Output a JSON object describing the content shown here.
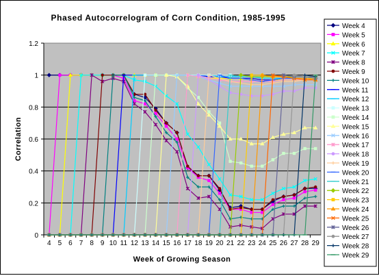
{
  "chart_data": {
    "type": "line",
    "title": "Phased Autocorrelogram of Corn Condition, 1985-1995",
    "xlabel": "Week of Growing Season",
    "ylabel": "Correlation",
    "x": [
      4,
      5,
      6,
      7,
      8,
      9,
      10,
      11,
      12,
      13,
      14,
      15,
      16,
      17,
      18,
      19,
      20,
      21,
      22,
      23,
      24,
      25,
      26,
      27,
      28,
      29
    ],
    "xlim": [
      4,
      29
    ],
    "ylim": [
      0,
      1.2
    ],
    "yticks": [
      "0",
      "0.2",
      "0.4",
      "0.6",
      "0.8",
      "1",
      "1.2"
    ],
    "grid": "horizontal",
    "legend_position": "right",
    "series": [
      {
        "name": "Week 4",
        "color": "#000080",
        "marker": "diamond",
        "values": [
          1,
          1,
          1,
          1,
          1,
          1,
          1,
          1,
          0.88,
          0.86,
          0.79,
          0.7,
          0.64,
          0.42,
          0.37,
          0.37,
          0.28,
          0.17,
          0.18,
          0.16,
          0.16,
          0.21,
          0.24,
          0.25,
          0.29,
          0.29
        ]
      },
      {
        "name": "Week 5",
        "color": "#FF00FF",
        "marker": "square",
        "values": [
          0,
          1,
          1,
          1,
          1,
          1,
          1,
          0.98,
          0.84,
          0.82,
          0.76,
          0.68,
          0.6,
          0.42,
          0.36,
          0.34,
          0.26,
          0.16,
          0.16,
          0.14,
          0.14,
          0.19,
          0.22,
          0.23,
          0.27,
          0.28
        ]
      },
      {
        "name": "Week 6",
        "color": "#FFFF00",
        "marker": "triangle",
        "values": [
          0,
          0,
          1,
          1,
          1,
          1,
          1,
          1,
          1,
          1,
          1,
          1,
          1,
          1,
          0.99,
          0.98,
          0.98,
          0.98,
          0.98,
          0.98,
          0.97,
          0.97,
          0.97,
          0.97,
          0.97,
          0.97
        ]
      },
      {
        "name": "Week 7",
        "color": "#00FFFF",
        "marker": "x",
        "values": [
          0,
          0,
          0,
          1,
          1,
          1,
          1,
          1,
          0.97,
          0.96,
          0.93,
          0.87,
          0.82,
          0.63,
          0.55,
          0.44,
          0.35,
          0.25,
          0.24,
          0.22,
          0.22,
          0.26,
          0.29,
          0.3,
          0.34,
          0.35
        ]
      },
      {
        "name": "Week 8",
        "color": "#800080",
        "marker": "star",
        "values": [
          0,
          0,
          0,
          0,
          1,
          0.96,
          0.98,
          0.96,
          0.82,
          0.77,
          0.69,
          0.59,
          0.52,
          0.29,
          0.23,
          0.24,
          0.16,
          0.05,
          0.06,
          0.05,
          0.04,
          0.1,
          0.13,
          0.13,
          0.18,
          0.18
        ]
      },
      {
        "name": "Week 9",
        "color": "#800000",
        "marker": "circle",
        "values": [
          0,
          0,
          0,
          0,
          0,
          1,
          1,
          1,
          0.88,
          0.88,
          0.78,
          0.7,
          0.64,
          0.43,
          0.37,
          0.37,
          0.29,
          0.16,
          0.17,
          0.16,
          0.16,
          0.22,
          0.24,
          0.25,
          0.29,
          0.3
        ]
      },
      {
        "name": "Week 10",
        "color": "#008080",
        "marker": "plus",
        "values": [
          0,
          0,
          0,
          0,
          0,
          0,
          1,
          1,
          0.86,
          0.84,
          0.74,
          0.64,
          0.58,
          0.36,
          0.3,
          0.3,
          0.22,
          0.1,
          0.11,
          0.1,
          0.1,
          0.16,
          0.18,
          0.18,
          0.23,
          0.24
        ]
      },
      {
        "name": "Week 11",
        "color": "#0000FF",
        "marker": "dash",
        "values": [
          0,
          0,
          0,
          0,
          0,
          0,
          0,
          1,
          1,
          1,
          1,
          1,
          1,
          1,
          1,
          0.99,
          0.99,
          0.98,
          0.98,
          0.98,
          0.97,
          0.97,
          0.98,
          0.98,
          0.98,
          0.98
        ]
      },
      {
        "name": "Week 12",
        "color": "#00CCFF",
        "marker": "dash",
        "values": [
          0,
          0,
          0,
          0,
          0,
          0,
          0,
          0,
          1,
          1,
          1,
          1,
          1,
          1,
          1,
          1,
          0.99,
          0.99,
          0.99,
          0.99,
          0.98,
          0.98,
          0.98,
          0.98,
          0.98,
          0.98
        ]
      },
      {
        "name": "Week 13",
        "color": "#CCFFFF",
        "marker": "square",
        "values": [
          0,
          0,
          0,
          0,
          0,
          0,
          0,
          0,
          0,
          1,
          1,
          1,
          1,
          1,
          1,
          1,
          1,
          1,
          0.99,
          0.99,
          0.99,
          0.99,
          0.99,
          0.99,
          0.99,
          0.99
        ]
      },
      {
        "name": "Week 14",
        "color": "#CCFFCC",
        "marker": "square",
        "values": [
          0,
          0,
          0,
          0,
          0,
          0,
          0,
          0,
          0,
          0,
          1,
          1,
          0.99,
          0.92,
          0.86,
          0.77,
          0.7,
          0.46,
          0.45,
          0.43,
          0.43,
          0.47,
          0.51,
          0.51,
          0.54,
          0.54
        ]
      },
      {
        "name": "Week 15",
        "color": "#FFFF99",
        "marker": "triangle",
        "values": [
          0,
          0,
          0,
          0,
          0,
          0,
          0,
          0,
          0,
          0,
          0,
          1,
          0.99,
          0.93,
          0.82,
          0.75,
          0.68,
          0.6,
          0.6,
          0.57,
          0.57,
          0.61,
          0.63,
          0.64,
          0.67,
          0.67
        ]
      },
      {
        "name": "Week 16",
        "color": "#99CCFF",
        "marker": "x",
        "values": [
          0,
          0,
          0,
          0,
          0,
          0,
          0,
          0,
          0,
          0,
          0,
          0,
          1,
          1,
          0.99,
          0.97,
          0.95,
          0.93,
          0.93,
          0.93,
          0.93,
          0.93,
          0.93,
          0.94,
          0.94,
          0.94
        ]
      },
      {
        "name": "Week 17",
        "color": "#FF99CC",
        "marker": "star",
        "values": [
          0,
          0,
          0,
          0,
          0,
          0,
          0,
          0,
          0,
          0,
          0,
          0,
          0,
          1,
          0.99,
          0.98,
          0.97,
          0.96,
          0.96,
          0.96,
          0.96,
          0.96,
          0.97,
          0.97,
          0.97,
          0.97
        ]
      },
      {
        "name": "Week 18",
        "color": "#CC99FF",
        "marker": "circle",
        "values": [
          0,
          0,
          0,
          0,
          0,
          0,
          0,
          0,
          0,
          0,
          0,
          0,
          0,
          0,
          1,
          0.97,
          0.93,
          0.89,
          0.88,
          0.87,
          0.87,
          0.88,
          0.9,
          0.9,
          0.92,
          0.92
        ]
      },
      {
        "name": "Week 19",
        "color": "#FFCC99",
        "marker": "plus",
        "values": [
          0,
          0,
          0,
          0,
          0,
          0,
          0,
          0,
          0,
          0,
          0,
          0,
          0,
          0,
          0,
          1,
          0.98,
          0.96,
          0.95,
          0.94,
          0.94,
          0.95,
          0.96,
          0.96,
          0.97,
          0.97
        ]
      },
      {
        "name": "Week 20",
        "color": "#3366FF",
        "marker": "dash",
        "values": [
          0,
          0,
          0,
          0,
          0,
          0,
          0,
          0,
          0,
          0,
          0,
          0,
          0,
          0,
          0,
          0,
          1,
          0.98,
          0.98,
          0.97,
          0.96,
          0.97,
          0.98,
          0.98,
          0.98,
          0.98
        ]
      },
      {
        "name": "Week 21",
        "color": "#33CCCC",
        "marker": "dash",
        "values": [
          0,
          0,
          0,
          0,
          0,
          0,
          0,
          0,
          0,
          0,
          0,
          0,
          0,
          0,
          0,
          0,
          0,
          1,
          0.99,
          0.99,
          0.99,
          0.99,
          0.99,
          0.99,
          0.99,
          0.99
        ]
      },
      {
        "name": "Week 22",
        "color": "#99CC00",
        "marker": "diamond",
        "values": [
          0,
          0,
          0,
          0,
          0,
          0,
          0,
          0,
          0,
          0,
          0,
          0,
          0,
          0,
          0,
          0,
          0,
          0,
          1,
          0.99,
          0.99,
          0.99,
          0.99,
          0.99,
          0.99,
          0.99
        ]
      },
      {
        "name": "Week 23",
        "color": "#FFCC00",
        "marker": "square",
        "values": [
          0,
          0,
          0,
          0,
          0,
          0,
          0,
          0,
          0,
          0,
          0,
          0,
          0,
          0,
          0,
          0,
          0,
          0,
          0,
          1,
          1,
          0.99,
          0.99,
          0.98,
          0.98,
          0.98
        ]
      },
      {
        "name": "Week 24",
        "color": "#FF9900",
        "marker": "triangle",
        "values": [
          0,
          0,
          0,
          0,
          0,
          0,
          0,
          0,
          0,
          0,
          0,
          0,
          0,
          0,
          0,
          0,
          0,
          0,
          0,
          0,
          1,
          0.99,
          0.99,
          0.98,
          0.98,
          0.97
        ]
      },
      {
        "name": "Week 25",
        "color": "#FF6600",
        "marker": "x",
        "values": [
          0,
          0,
          0,
          0,
          0,
          0,
          0,
          0,
          0,
          0,
          0,
          0,
          0,
          0,
          0,
          0,
          0,
          0,
          0,
          0,
          0,
          1,
          0.99,
          0.98,
          0.97,
          0.97
        ]
      },
      {
        "name": "Week 26",
        "color": "#666699",
        "marker": "star",
        "values": [
          0,
          0,
          0,
          0,
          0,
          0,
          0,
          0,
          0,
          0,
          0,
          0,
          0,
          0,
          0,
          0,
          0,
          0,
          0,
          0,
          0,
          0,
          1,
          0.99,
          0.99,
          0.98
        ]
      },
      {
        "name": "Week 27",
        "color": "#969696",
        "marker": "circle",
        "values": [
          0,
          0,
          0,
          0,
          0,
          0,
          0,
          0,
          0,
          0,
          0,
          0,
          0,
          0,
          0,
          0,
          0,
          0,
          0,
          0,
          0,
          0,
          0,
          1,
          0.99,
          0.99
        ]
      },
      {
        "name": "Week 28",
        "color": "#003366",
        "marker": "plus",
        "values": [
          0,
          0,
          0,
          0,
          0,
          0,
          0,
          0,
          0,
          0,
          0,
          0,
          0,
          0,
          0,
          0,
          0,
          0,
          0,
          0,
          0,
          0,
          0,
          0,
          1,
          0.99
        ]
      },
      {
        "name": "Week 29",
        "color": "#339966",
        "marker": "dash",
        "values": [
          0,
          0,
          0,
          0,
          0,
          0,
          0,
          0,
          0,
          0,
          0,
          0,
          0,
          0,
          0,
          0,
          0,
          0,
          0,
          0,
          0,
          0,
          0,
          0,
          0,
          1
        ]
      }
    ]
  }
}
